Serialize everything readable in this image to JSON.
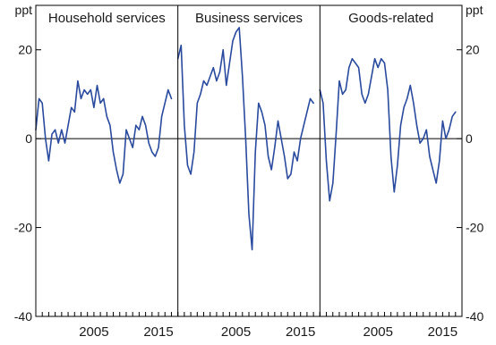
{
  "chart_data": {
    "type": "line",
    "unit_left": "ppt",
    "unit_right": "ppt",
    "ylim": [
      -40,
      30
    ],
    "yticks": [
      -40,
      -20,
      0,
      20
    ],
    "xlim": [
      1996,
      2018
    ],
    "xticks": [
      2005,
      2015
    ],
    "grid": false,
    "zero_line": true,
    "line_color": "#2a4a9e",
    "panels": [
      {
        "title": "Household services",
        "x": [
          1996,
          1996.5,
          1997,
          1997.5,
          1998,
          1998.5,
          1999,
          1999.5,
          2000,
          2000.5,
          2001,
          2001.5,
          2002,
          2002.5,
          2003,
          2003.5,
          2004,
          2004.5,
          2005,
          2005.5,
          2006,
          2006.5,
          2007,
          2007.5,
          2008,
          2008.5,
          2009,
          2009.5,
          2010,
          2010.5,
          2011,
          2011.5,
          2012,
          2012.5,
          2013,
          2013.5,
          2014,
          2014.5,
          2015,
          2015.5,
          2016,
          2016.5,
          2017
        ],
        "y": [
          2,
          9,
          8,
          0,
          -5,
          1,
          2,
          -1,
          2,
          -1,
          3,
          7,
          6,
          13,
          9,
          11,
          10,
          11,
          7,
          12,
          8,
          9,
          5,
          3,
          -3,
          -7,
          -10,
          -8,
          2,
          0,
          -2,
          3,
          2,
          5,
          3,
          -1,
          -3,
          -4,
          -2,
          5,
          8,
          11,
          9
        ]
      },
      {
        "title": "Business services",
        "x": [
          1996,
          1996.5,
          1997,
          1997.5,
          1998,
          1998.5,
          1999,
          1999.5,
          2000,
          2000.5,
          2001,
          2001.5,
          2002,
          2002.5,
          2003,
          2003.5,
          2004,
          2004.5,
          2005,
          2005.5,
          2006,
          2006.5,
          2007,
          2007.5,
          2008,
          2008.5,
          2009,
          2009.5,
          2010,
          2010.5,
          2011,
          2011.5,
          2012,
          2012.5,
          2013,
          2013.5,
          2014,
          2014.5,
          2015,
          2015.5,
          2016,
          2016.5,
          2017
        ],
        "y": [
          18,
          21,
          3,
          -6,
          -8,
          -3,
          8,
          10,
          13,
          12,
          14,
          16,
          13,
          15,
          20,
          12,
          17,
          22,
          24,
          25,
          14,
          0,
          -17,
          -25,
          -3,
          8,
          6,
          3,
          -4,
          -7,
          -2,
          4,
          0,
          -4,
          -9,
          -8,
          -3,
          -5,
          0,
          3,
          6,
          9,
          8
        ]
      },
      {
        "title": "Goods-related",
        "x": [
          1996,
          1996.5,
          1997,
          1997.5,
          1998,
          1998.5,
          1999,
          1999.5,
          2000,
          2000.5,
          2001,
          2001.5,
          2002,
          2002.5,
          2003,
          2003.5,
          2004,
          2004.5,
          2005,
          2005.5,
          2006,
          2006.5,
          2007,
          2007.5,
          2008,
          2008.5,
          2009,
          2009.5,
          2010,
          2010.5,
          2011,
          2011.5,
          2012,
          2012.5,
          2013,
          2013.5,
          2014,
          2014.5,
          2015,
          2015.5,
          2016,
          2016.5,
          2017
        ],
        "y": [
          11,
          8,
          -5,
          -14,
          -10,
          1,
          13,
          10,
          11,
          16,
          18,
          17,
          16,
          10,
          8,
          10,
          14,
          18,
          16,
          18,
          17,
          11,
          -4,
          -12,
          -6,
          3,
          7,
          9,
          12,
          8,
          3,
          -1,
          0,
          2,
          -4,
          -7,
          -10,
          -5,
          4,
          0,
          2,
          5,
          6
        ]
      }
    ]
  }
}
